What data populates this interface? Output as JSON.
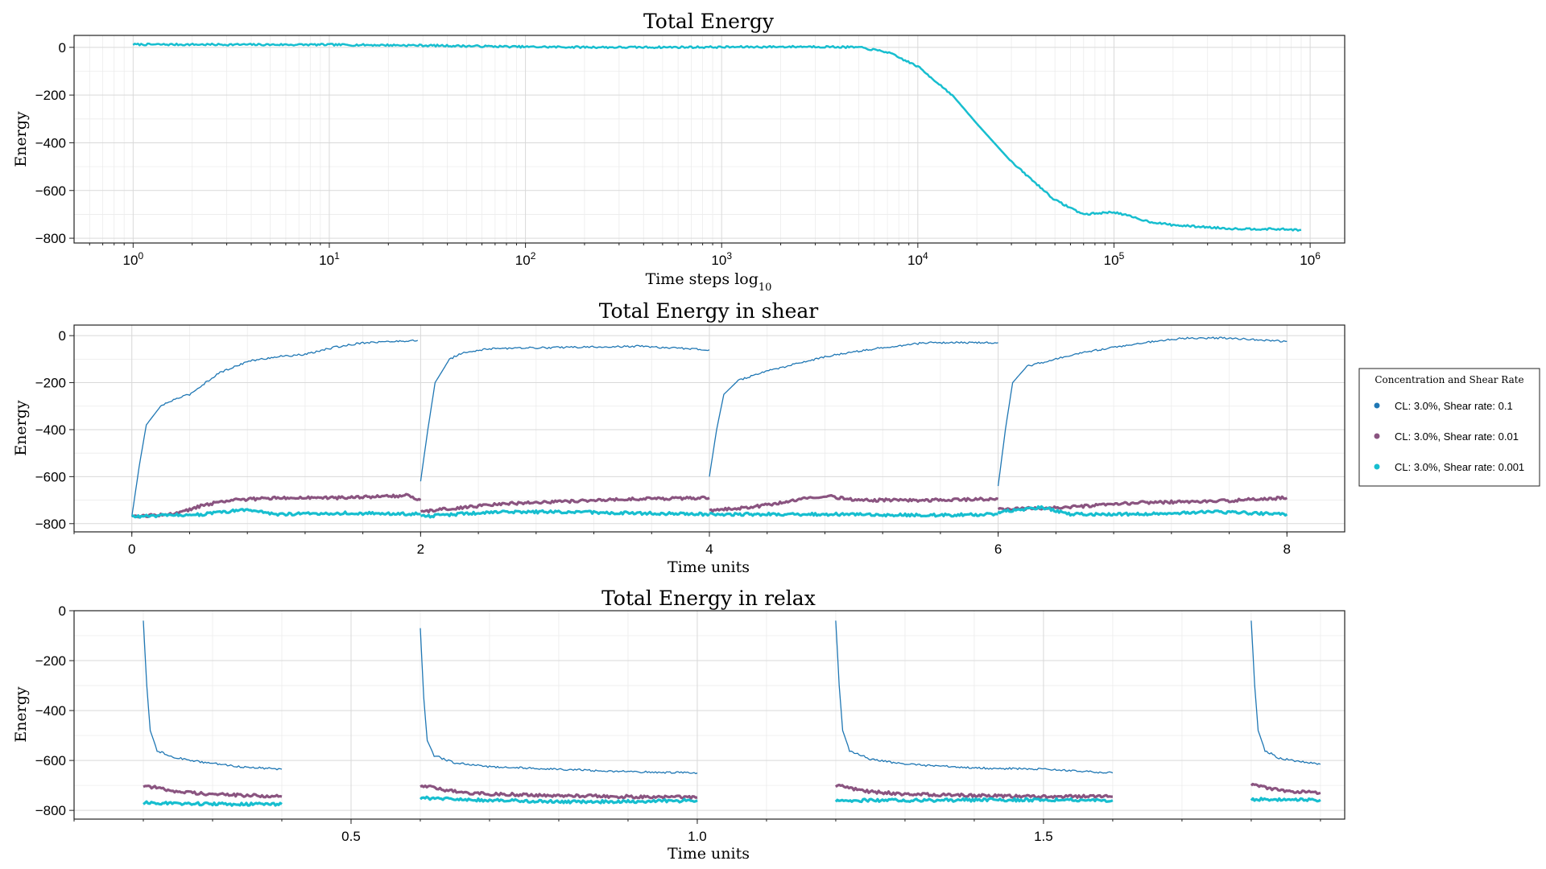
{
  "chart_data": [
    {
      "type": "line",
      "title": "Total Energy",
      "xlabel": "Time steps log",
      "xlabel_subscript": "10",
      "ylabel": "Energy",
      "xscale": "log",
      "xlim": [
        0.5,
        1500000
      ],
      "ylim": [
        -820,
        50
      ],
      "xticks": [
        1,
        10,
        100,
        1000,
        10000,
        100000,
        1000000
      ],
      "xtick_labels": [
        {
          "base": "10",
          "exp": "0"
        },
        {
          "base": "10",
          "exp": "1"
        },
        {
          "base": "10",
          "exp": "2"
        },
        {
          "base": "10",
          "exp": "3"
        },
        {
          "base": "10",
          "exp": "4"
        },
        {
          "base": "10",
          "exp": "5"
        },
        {
          "base": "10",
          "exp": "6"
        }
      ],
      "yticks": [
        0,
        -200,
        -400,
        -600,
        -800
      ],
      "ytick_labels": [
        "0",
        "−200",
        "−400",
        "−600",
        "−800"
      ],
      "grid": true,
      "series": [
        {
          "color": "#17becf",
          "points": [
            [
              1,
              12
            ],
            [
              10,
              11
            ],
            [
              30,
              8
            ],
            [
              100,
              2
            ],
            [
              300,
              0
            ],
            [
              1000,
              1
            ],
            [
              3000,
              3
            ],
            [
              5000,
              0
            ],
            [
              7000,
              -20
            ],
            [
              10000,
              -80
            ],
            [
              15000,
              -200
            ],
            [
              20000,
              -320
            ],
            [
              30000,
              -480
            ],
            [
              50000,
              -640
            ],
            [
              70000,
              -700
            ],
            [
              100000,
              -690
            ],
            [
              150000,
              -730
            ],
            [
              200000,
              -745
            ],
            [
              400000,
              -760
            ],
            [
              700000,
              -762
            ],
            [
              900000,
              -765
            ]
          ]
        }
      ]
    },
    {
      "type": "line",
      "title": "Total Energy in shear",
      "xlabel": "Time units",
      "ylabel": "Energy",
      "xlim": [
        -0.4,
        8.4
      ],
      "ylim": [
        -835,
        45
      ],
      "xticks": [
        0,
        2,
        4,
        6,
        8
      ],
      "xtick_labels": [
        "0",
        "2",
        "4",
        "6",
        "8"
      ],
      "yticks": [
        0,
        -200,
        -400,
        -600,
        -800
      ],
      "ytick_labels": [
        "0",
        "−200",
        "−400",
        "−600",
        "−800"
      ],
      "grid": true,
      "legend": {
        "title": "Concentration and Shear Rate",
        "position": "outside-right"
      },
      "series": [
        {
          "name": "CL: 3.0%, Shear rate: 0.1",
          "color": "#1f77b4",
          "segments": [
            [
              [
                0,
                -770
              ],
              [
                0.05,
                -560
              ],
              [
                0.1,
                -380
              ],
              [
                0.2,
                -300
              ],
              [
                0.3,
                -270
              ],
              [
                0.4,
                -250
              ],
              [
                0.6,
                -160
              ],
              [
                0.8,
                -110
              ],
              [
                1.0,
                -90
              ],
              [
                1.2,
                -80
              ],
              [
                1.4,
                -50
              ],
              [
                1.6,
                -30
              ],
              [
                1.8,
                -25
              ],
              [
                1.98,
                -20
              ]
            ],
            [
              [
                2,
                -620
              ],
              [
                2.05,
                -400
              ],
              [
                2.1,
                -200
              ],
              [
                2.2,
                -100
              ],
              [
                2.3,
                -70
              ],
              [
                2.5,
                -55
              ],
              [
                3.0,
                -50
              ],
              [
                3.5,
                -45
              ],
              [
                4.0,
                -60
              ]
            ],
            [
              [
                4,
                -600
              ],
              [
                4.05,
                -400
              ],
              [
                4.1,
                -250
              ],
              [
                4.2,
                -190
              ],
              [
                4.4,
                -150
              ],
              [
                4.6,
                -120
              ],
              [
                4.8,
                -90
              ],
              [
                5.0,
                -70
              ],
              [
                5.2,
                -50
              ],
              [
                5.5,
                -30
              ],
              [
                6.0,
                -30
              ]
            ],
            [
              [
                6,
                -640
              ],
              [
                6.05,
                -400
              ],
              [
                6.1,
                -200
              ],
              [
                6.2,
                -130
              ],
              [
                6.4,
                -100
              ],
              [
                6.6,
                -70
              ],
              [
                6.8,
                -50
              ],
              [
                7.0,
                -30
              ],
              [
                7.3,
                -10
              ],
              [
                7.6,
                -10
              ],
              [
                8.0,
                -25
              ]
            ]
          ]
        },
        {
          "name": "CL: 3.0%, Shear rate: 0.01",
          "color": "#8a5480",
          "segments": [
            [
              [
                0,
                -770
              ],
              [
                0.3,
                -760
              ],
              [
                0.5,
                -720
              ],
              [
                0.7,
                -700
              ],
              [
                1.0,
                -690
              ],
              [
                1.5,
                -690
              ],
              [
                1.9,
                -680
              ],
              [
                2.0,
                -700
              ]
            ],
            [
              [
                2,
                -750
              ],
              [
                2.3,
                -730
              ],
              [
                2.6,
                -715
              ],
              [
                3.0,
                -705
              ],
              [
                3.5,
                -695
              ],
              [
                4.0,
                -690
              ]
            ],
            [
              [
                4,
                -745
              ],
              [
                4.3,
                -730
              ],
              [
                4.6,
                -700
              ],
              [
                4.8,
                -680
              ],
              [
                5.0,
                -700
              ],
              [
                5.5,
                -700
              ],
              [
                6.0,
                -695
              ]
            ],
            [
              [
                6,
                -740
              ],
              [
                6.5,
                -730
              ],
              [
                7.0,
                -710
              ],
              [
                7.5,
                -705
              ],
              [
                8.0,
                -690
              ]
            ]
          ]
        },
        {
          "name": "CL: 3.0%, Shear rate: 0.001",
          "color": "#17becf",
          "segments": [
            [
              [
                0,
                -770
              ],
              [
                0.5,
                -760
              ],
              [
                0.8,
                -740
              ],
              [
                1.0,
                -760
              ],
              [
                1.5,
                -755
              ],
              [
                2.0,
                -760
              ]
            ],
            [
              [
                2,
                -770
              ],
              [
                2.5,
                -750
              ],
              [
                3.0,
                -750
              ],
              [
                3.5,
                -755
              ],
              [
                4.0,
                -760
              ]
            ],
            [
              [
                4,
                -760
              ],
              [
                4.5,
                -760
              ],
              [
                5.0,
                -760
              ],
              [
                5.5,
                -765
              ],
              [
                6.0,
                -760
              ]
            ],
            [
              [
                6,
                -750
              ],
              [
                6.3,
                -730
              ],
              [
                6.5,
                -760
              ],
              [
                7.0,
                -760
              ],
              [
                7.5,
                -750
              ],
              [
                8.0,
                -760
              ]
            ]
          ]
        }
      ]
    },
    {
      "type": "line",
      "title": "Total Energy in relax",
      "xlabel": "Time units",
      "ylabel": "Energy",
      "xlim": [
        0.1,
        1.935
      ],
      "ylim": [
        -835,
        0
      ],
      "xticks": [
        0.5,
        1.0,
        1.5
      ],
      "xtick_labels": [
        "0.5",
        "1.0",
        "1.5"
      ],
      "yticks": [
        0,
        -200,
        -400,
        -600,
        -800
      ],
      "ytick_labels": [
        "0",
        "−200",
        "−400",
        "−600",
        "−800"
      ],
      "grid": true,
      "series": [
        {
          "name": "CL: 3.0%, Shear rate: 0.1",
          "color": "#1f77b4",
          "segments": [
            [
              [
                0.2,
                -40
              ],
              [
                0.205,
                -300
              ],
              [
                0.21,
                -480
              ],
              [
                0.22,
                -560
              ],
              [
                0.24,
                -585
              ],
              [
                0.28,
                -605
              ],
              [
                0.34,
                -625
              ],
              [
                0.4,
                -635
              ]
            ],
            [
              [
                0.6,
                -70
              ],
              [
                0.605,
                -350
              ],
              [
                0.61,
                -520
              ],
              [
                0.62,
                -580
              ],
              [
                0.65,
                -610
              ],
              [
                0.7,
                -625
              ],
              [
                0.8,
                -635
              ],
              [
                0.9,
                -645
              ],
              [
                1.0,
                -650
              ]
            ],
            [
              [
                1.2,
                -40
              ],
              [
                1.205,
                -300
              ],
              [
                1.21,
                -480
              ],
              [
                1.22,
                -560
              ],
              [
                1.25,
                -595
              ],
              [
                1.3,
                -615
              ],
              [
                1.4,
                -630
              ],
              [
                1.5,
                -635
              ],
              [
                1.6,
                -650
              ]
            ],
            [
              [
                1.8,
                -40
              ],
              [
                1.805,
                -300
              ],
              [
                1.81,
                -480
              ],
              [
                1.82,
                -560
              ],
              [
                1.84,
                -590
              ],
              [
                1.87,
                -605
              ],
              [
                1.9,
                -615
              ]
            ]
          ]
        },
        {
          "name": "CL: 3.0%, Shear rate: 0.01",
          "color": "#8a5480",
          "segments": [
            [
              [
                0.2,
                -700
              ],
              [
                0.25,
                -725
              ],
              [
                0.3,
                -735
              ],
              [
                0.35,
                -740
              ],
              [
                0.4,
                -745
              ]
            ],
            [
              [
                0.6,
                -700
              ],
              [
                0.65,
                -725
              ],
              [
                0.7,
                -735
              ],
              [
                0.8,
                -740
              ],
              [
                0.9,
                -745
              ],
              [
                1.0,
                -748
              ]
            ],
            [
              [
                1.2,
                -700
              ],
              [
                1.25,
                -725
              ],
              [
                1.3,
                -735
              ],
              [
                1.4,
                -740
              ],
              [
                1.5,
                -745
              ],
              [
                1.6,
                -745
              ]
            ],
            [
              [
                1.8,
                -695
              ],
              [
                1.83,
                -715
              ],
              [
                1.86,
                -725
              ],
              [
                1.9,
                -730
              ]
            ]
          ]
        },
        {
          "name": "CL: 3.0%, Shear rate: 0.001",
          "color": "#17becf",
          "segments": [
            [
              [
                0.2,
                -770
              ],
              [
                0.3,
                -775
              ],
              [
                0.4,
                -775
              ]
            ],
            [
              [
                0.6,
                -750
              ],
              [
                0.7,
                -760
              ],
              [
                0.8,
                -765
              ],
              [
                0.9,
                -765
              ],
              [
                1.0,
                -760
              ]
            ],
            [
              [
                1.2,
                -760
              ],
              [
                1.3,
                -760
              ],
              [
                1.4,
                -758
              ],
              [
                1.5,
                -758
              ],
              [
                1.6,
                -760
              ]
            ],
            [
              [
                1.8,
                -755
              ],
              [
                1.85,
                -758
              ],
              [
                1.9,
                -758
              ]
            ]
          ]
        }
      ]
    }
  ]
}
